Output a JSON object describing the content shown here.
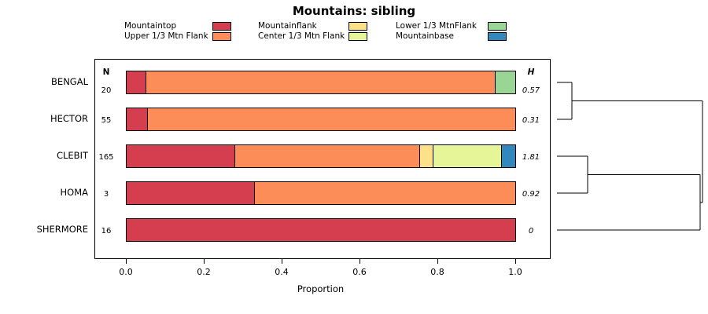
{
  "title": "Mountains: sibling",
  "axis": {
    "xlabel": "Proportion",
    "ticks": [
      "0.0",
      "0.2",
      "0.4",
      "0.6",
      "0.8",
      "1.0"
    ]
  },
  "headers": {
    "n": "N",
    "h": "H"
  },
  "legend": {
    "items": [
      {
        "label": "Mountaintop",
        "color": "#D53E4F"
      },
      {
        "label": "Upper 1/3 Mtn Flank",
        "color": "#FC8D59"
      },
      {
        "label": "Mountainflank",
        "color": "#FEE08B"
      },
      {
        "label": "Center 1/3 Mtn Flank",
        "color": "#E6F598"
      },
      {
        "label": "Lower 1/3 MtnFlank",
        "color": "#99D594"
      },
      {
        "label": "Mountainbase",
        "color": "#3288BD"
      }
    ]
  },
  "chart_data": {
    "type": "bar",
    "stacked": true,
    "orientation": "horizontal",
    "title": "Mountains: sibling",
    "xlabel": "Proportion",
    "xlim": [
      0,
      1
    ],
    "xticks": [
      0,
      0.2,
      0.4,
      0.6,
      0.8,
      1.0
    ],
    "categories": [
      "BENGAL",
      "HECTOR",
      "CLEBIT",
      "HOMA",
      "SHERMORE"
    ],
    "n_values": [
      20,
      55,
      165,
      3,
      16
    ],
    "h_values": [
      "0.57",
      "0.31",
      "1.81",
      "0.92",
      "0"
    ],
    "series": [
      {
        "name": "Mountaintop",
        "color": "#D53E4F",
        "values": [
          0.05,
          0.055,
          0.28,
          0.33,
          1.0
        ]
      },
      {
        "name": "Upper 1/3 Mtn Flank",
        "color": "#FC8D59",
        "values": [
          0.9,
          0.945,
          0.475,
          0.67,
          0
        ]
      },
      {
        "name": "Mountainflank",
        "color": "#FEE08B",
        "values": [
          0,
          0,
          0.035,
          0,
          0
        ]
      },
      {
        "name": "Center 1/3 Mtn Flank",
        "color": "#E6F598",
        "values": [
          0,
          0,
          0.175,
          0,
          0
        ]
      },
      {
        "name": "Lower 1/3 MtnFlank",
        "color": "#99D594",
        "values": [
          0.05,
          0,
          0,
          0,
          0
        ]
      },
      {
        "name": "Mountainbase",
        "color": "#3288BD",
        "values": [
          0,
          0,
          0.035,
          0,
          0
        ]
      }
    ],
    "dendrogram": {
      "leaf_order": [
        "BENGAL",
        "HECTOR",
        "CLEBIT",
        "HOMA",
        "SHERMORE"
      ],
      "structure": "((BENGAL,HECTOR),((CLEBIT,HOMA),SHERMORE))"
    }
  }
}
